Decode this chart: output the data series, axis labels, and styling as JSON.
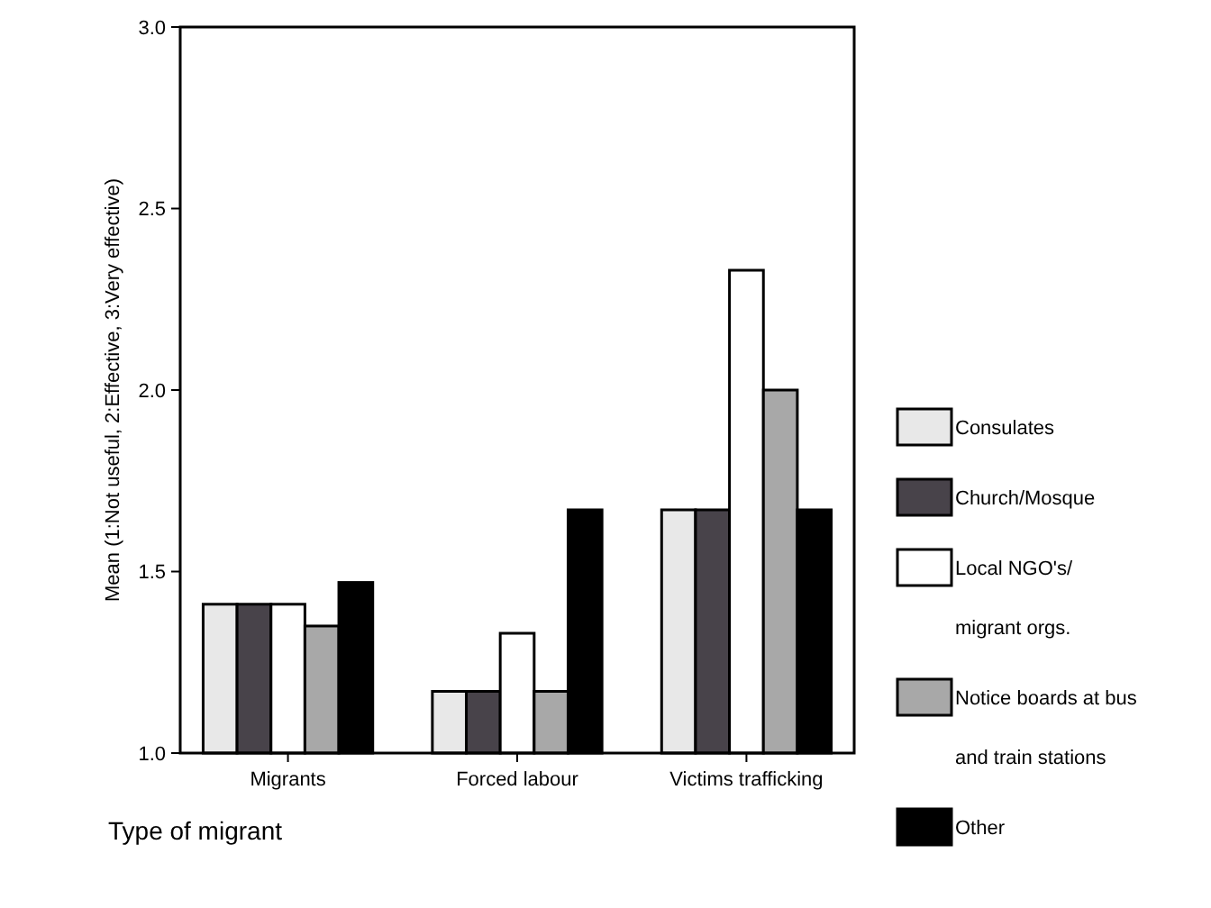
{
  "chart_data": {
    "type": "bar",
    "xlabel": "Type of migrant",
    "ylabel": "Mean (1:Not useful, 2:Effective, 3:Very effective)",
    "categories": [
      "Migrants",
      "Forced labour",
      "Victims trafficking"
    ],
    "series": [
      {
        "name": "Consulates",
        "color": "#e8e8e8",
        "values": [
          1.41,
          1.17,
          1.67
        ]
      },
      {
        "name": "Church/Mosque",
        "color": "#48434a",
        "values": [
          1.41,
          1.17,
          1.67
        ]
      },
      {
        "name": "Local NGO's/\nmigrant orgs.",
        "color": "#ffffff",
        "values": [
          1.41,
          1.33,
          2.33
        ]
      },
      {
        "name": "Notice boards at bus\nand train stations",
        "color": "#a8a8a8",
        "values": [
          1.35,
          1.17,
          2.0
        ]
      },
      {
        "name": "Other",
        "color": "#000000",
        "values": [
          1.47,
          1.67,
          1.67
        ]
      }
    ],
    "ylim": [
      1,
      3
    ],
    "yticks": [
      {
        "value": 1,
        "label": "1.0"
      },
      {
        "value": 1.5,
        "label": "1.5"
      },
      {
        "value": 2,
        "label": "2.0"
      },
      {
        "value": 2.5,
        "label": "2.5"
      },
      {
        "value": 3,
        "label": "3.0"
      }
    ],
    "legend": "right",
    "grid": false
  }
}
